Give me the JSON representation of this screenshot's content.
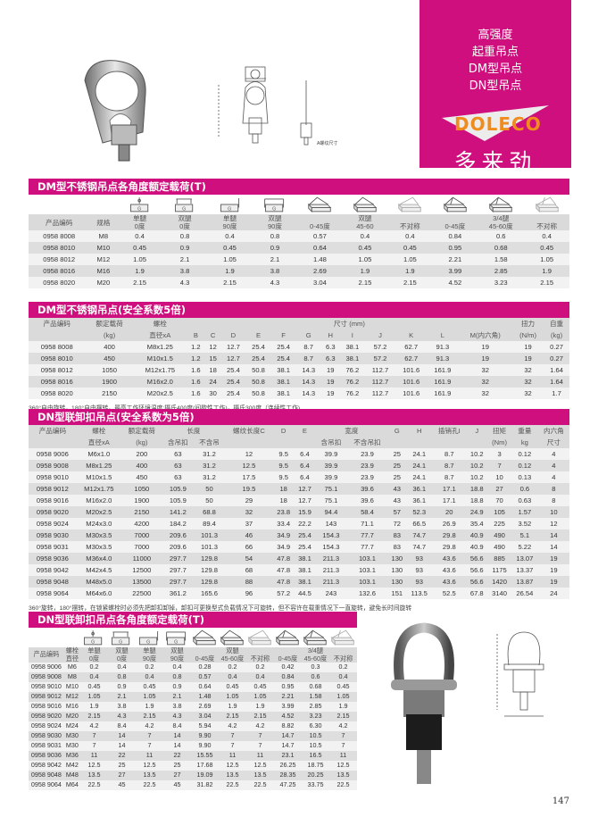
{
  "brand": {
    "lines": [
      "高强度",
      "起重吊点",
      "DM型吊点",
      "DN型吊点"
    ],
    "logo_text": "DOLECO",
    "cn_name": "多来劲",
    "color": "#cf0f7d",
    "logo_color": "#f08c1e"
  },
  "drawing_label": "A螺纹尺寸",
  "page_number": "147",
  "table1": {
    "title": "DM型不锈钢吊点各角度额定载荷(T)",
    "icons": [
      "",
      "",
      "single-leg-0-icon",
      "double-leg-0-icon",
      "single-leg-90-icon",
      "double-leg-90-icon",
      "double-leg-0-45-icon",
      "double-leg-45-60-icon",
      "double-leg-asym-icon",
      "multi-leg-0-45-icon",
      "multi-leg-45-60-icon",
      "multi-leg-asym-icon"
    ],
    "header": [
      [
        "产品编码",
        "规格",
        "单腿\n0度",
        "双腿\n0度",
        "单腿\n90度",
        "双腿\n90度",
        "\n0-45度",
        "双腿\n45-60",
        "\n不对称",
        "\n0-45度",
        "3/4腿\n45-60度",
        "\n不对称"
      ]
    ],
    "rows": [
      [
        "0958 8008",
        "M8",
        "0.4",
        "0.8",
        "0.4",
        "0.8",
        "0.57",
        "0.4",
        "0.4",
        "0.84",
        "0.6",
        "0.4"
      ],
      [
        "0958 8010",
        "M10",
        "0.45",
        "0.9",
        "0.45",
        "0.9",
        "0.64",
        "0.45",
        "0.45",
        "0.95",
        "0.68",
        "0.45"
      ],
      [
        "0958 8012",
        "M12",
        "1.05",
        "2.1",
        "1.05",
        "2.1",
        "1.48",
        "1.05",
        "1.05",
        "2.21",
        "1.58",
        "1.05"
      ],
      [
        "0958 8016",
        "M16",
        "1.9",
        "3.8",
        "1.9",
        "3.8",
        "2.69",
        "1.9",
        "1.9",
        "3.99",
        "2.85",
        "1.9"
      ],
      [
        "0958 8020",
        "M20",
        "2.15",
        "4.3",
        "2.15",
        "4.3",
        "3.04",
        "2.15",
        "2.15",
        "4.52",
        "3.23",
        "2.15"
      ]
    ]
  },
  "table2": {
    "title": "DM型不锈钢吊点(安全系数5倍)",
    "header": [
      [
        "产品编码",
        "额定载荷",
        "螺栓",
        {
          "t": "尺寸 (mm)",
          "span": 12
        },
        "扭力",
        "自重"
      ],
      [
        "",
        "(kg)",
        "直径xA",
        "B",
        "C",
        "D",
        "E",
        "F",
        "G",
        "H",
        "I",
        "J",
        "K",
        "L",
        "M(内六角)",
        "(N/m)",
        "(kg)"
      ]
    ],
    "rows": [
      [
        "0958 8008",
        "400",
        "M8x1.25",
        "1.2",
        "12",
        "12.7",
        "25.4",
        "25.4",
        "8.7",
        "6.3",
        "38.1",
        "57.2",
        "62.7",
        "91.3",
        "19",
        "19",
        "0.27"
      ],
      [
        "0958 8010",
        "450",
        "M10x1.5",
        "1.2",
        "15",
        "12.7",
        "25.4",
        "25.4",
        "8.7",
        "6.3",
        "38.1",
        "57.2",
        "62.7",
        "91.3",
        "19",
        "19",
        "0.27"
      ],
      [
        "0958 8012",
        "1050",
        "M12x1.75",
        "1.6",
        "18",
        "25.4",
        "50.8",
        "38.1",
        "14.3",
        "19",
        "76.2",
        "112.7",
        "101.6",
        "161.9",
        "32",
        "32",
        "1.64"
      ],
      [
        "0958 8016",
        "1900",
        "M16x2.0",
        "1.6",
        "24",
        "25.4",
        "50.8",
        "38.1",
        "14.3",
        "19",
        "76.2",
        "112.7",
        "101.6",
        "161.9",
        "32",
        "32",
        "1.64"
      ],
      [
        "0958 8020",
        "2150",
        "M20x2.5",
        "1.6",
        "30",
        "25.4",
        "50.8",
        "38.1",
        "14.3",
        "19",
        "76.2",
        "112.7",
        "101.6",
        "161.9",
        "32",
        "32",
        "1.7"
      ]
    ],
    "note": "360°自由旋转，180°自由摆转，最高工作环境温度:摄氏400度(间歇性工作)，摄氏300度（连续性工作)"
  },
  "table3": {
    "title": "DN型联卸扣吊点(安全系数为5倍)",
    "header": [
      [
        "产品编码",
        "螺栓",
        "额定载荷",
        {
          "t": "长度",
          "span": 2
        },
        "螺纹长度C",
        "D",
        "E",
        {
          "t": "宽度",
          "span": 2
        },
        "G",
        "H",
        "插销孔I",
        "J",
        "扭矩",
        "重量",
        "内六角"
      ],
      [
        "",
        "直径xA",
        "(kg)",
        "含吊扣",
        "不含吊",
        "",
        "",
        "",
        "含吊扣",
        "不含吊扣",
        "",
        "",
        "",
        "",
        "(Nm)",
        "kg",
        "尺寸"
      ]
    ],
    "rows": [
      [
        "0958 9006",
        "M6x1.0",
        "200",
        "63",
        "31.2",
        "12",
        "9.5",
        "6.4",
        "39.9",
        "23.9",
        "25",
        "24.1",
        "8.7",
        "10.2",
        "3",
        "0.12",
        "4"
      ],
      [
        "0958 9008",
        "M8x1.25",
        "400",
        "63",
        "31.2",
        "12.5",
        "9.5",
        "6.4",
        "39.9",
        "23.9",
        "25",
        "24.1",
        "8.7",
        "10.2",
        "7",
        "0.12",
        "4"
      ],
      [
        "0958 9010",
        "M10x1.5",
        "450",
        "63",
        "31.2",
        "17.5",
        "9.5",
        "6.4",
        "39.9",
        "23.9",
        "25",
        "24.1",
        "8.7",
        "10.2",
        "10",
        "0.13",
        "4"
      ],
      [
        "0958 9012",
        "M12x1.75",
        "1050",
        "105.9",
        "50",
        "19.5",
        "18",
        "12.7",
        "75.1",
        "39.6",
        "43",
        "36.1",
        "17.1",
        "18.8",
        "27",
        "0.6",
        "8"
      ],
      [
        "0958 9016",
        "M16x2.0",
        "1900",
        "105.9",
        "50",
        "29",
        "18",
        "12.7",
        "75.1",
        "39.6",
        "43",
        "36.1",
        "17.1",
        "18.8",
        "70",
        "0.63",
        "8"
      ],
      [
        "0958 9020",
        "M20x2.5",
        "2150",
        "141.2",
        "68.8",
        "32",
        "23.8",
        "15.9",
        "94.4",
        "58.4",
        "57",
        "52.3",
        "20",
        "24.9",
        "105",
        "1.57",
        "10"
      ],
      [
        "0958 9024",
        "M24x3.0",
        "4200",
        "184.2",
        "89.4",
        "37",
        "33.4",
        "22.2",
        "143",
        "71.1",
        "72",
        "66.5",
        "26.9",
        "35.4",
        "225",
        "3.52",
        "12"
      ],
      [
        "0958 9030",
        "M30x3.5",
        "7000",
        "209.6",
        "101.3",
        "46",
        "34.9",
        "25.4",
        "154.3",
        "77.7",
        "83",
        "74.7",
        "29.8",
        "40.9",
        "490",
        "5.1",
        "14"
      ],
      [
        "0958 9031",
        "M30x3.5",
        "7000",
        "209.6",
        "101.3",
        "66",
        "34.9",
        "25.4",
        "154.3",
        "77.7",
        "83",
        "74.7",
        "29.8",
        "40.9",
        "490",
        "5.22",
        "14"
      ],
      [
        "0958 9036",
        "M36x4.0",
        "11000",
        "297.7",
        "129.8",
        "54",
        "47.8",
        "38.1",
        "211.3",
        "103.1",
        "130",
        "93",
        "43.6",
        "56.6",
        "885",
        "13.07",
        "19"
      ],
      [
        "0958 9042",
        "M42x4.5",
        "12500",
        "297.7",
        "129.8",
        "68",
        "47.8",
        "38.1",
        "211.3",
        "103.1",
        "130",
        "93",
        "43.6",
        "56.6",
        "1175",
        "13.37",
        "19"
      ],
      [
        "0958 9048",
        "M48x5.0",
        "13500",
        "297.7",
        "129.8",
        "88",
        "47.8",
        "38.1",
        "211.3",
        "103.1",
        "130",
        "93",
        "43.6",
        "56.6",
        "1420",
        "13.87",
        "19"
      ],
      [
        "0958 9064",
        "M64x6.0",
        "22500",
        "361.2",
        "165.6",
        "96",
        "57.2",
        "44.5",
        "243",
        "132.6",
        "151",
        "113.5",
        "52.5",
        "67.8",
        "3140",
        "26.54",
        "24"
      ]
    ],
    "note": "360°旋转，180°摆转，在锁紧螺栓时必须先把卸扣卸掉，卸扣可更换型式负载情况下可旋转，但不容许在载重情况下一直旋转，避免长时间旋转"
  },
  "table4": {
    "title": "DN型联卸扣吊点各角度额定载荷(T)",
    "icons": [
      "",
      "",
      "single-leg-0-icon",
      "double-leg-0-icon",
      "single-leg-90-icon",
      "double-leg-90-icon",
      "double-leg-0-45-icon",
      "double-leg-45-60-icon",
      "double-leg-asym-icon",
      "multi-leg-0-45-icon",
      "multi-leg-45-60-icon",
      "multi-leg-asym-icon"
    ],
    "header": [
      [
        "产品编码",
        "螺栓\n直径",
        "单腿\n0度",
        "双腿\n0度",
        "单腿\n90度",
        "双腿\n90度",
        "\n0-45度",
        "双腿\n45-60度",
        "\n不对称",
        "\n0-45度",
        "3/4腿\n45-60度",
        "\n不对称"
      ]
    ],
    "rows": [
      [
        "0958 9006",
        "M6",
        "0.2",
        "0.4",
        "0.2",
        "0.4",
        "0.28",
        "0.2",
        "0.2",
        "0.42",
        "0.3",
        "0.2"
      ],
      [
        "0958 9008",
        "M8",
        "0.4",
        "0.8",
        "0.4",
        "0.8",
        "0.57",
        "0.4",
        "0.4",
        "0.84",
        "0.6",
        "0.4"
      ],
      [
        "0958 9010",
        "M10",
        "0.45",
        "0.9",
        "0.45",
        "0.9",
        "0.64",
        "0.45",
        "0.45",
        "0.95",
        "0.68",
        "0.45"
      ],
      [
        "0958 9012",
        "M12",
        "1.05",
        "2.1",
        "1.05",
        "2.1",
        "1.48",
        "1.05",
        "1.05",
        "2.21",
        "1.58",
        "1.05"
      ],
      [
        "0958 9016",
        "M16",
        "1.9",
        "3.8",
        "1.9",
        "3.8",
        "2.69",
        "1.9",
        "1.9",
        "3.99",
        "2.85",
        "1.9"
      ],
      [
        "0958 9020",
        "M20",
        "2.15",
        "4.3",
        "2.15",
        "4.3",
        "3.04",
        "2.15",
        "2.15",
        "4.52",
        "3.23",
        "2.15"
      ],
      [
        "0958 9024",
        "M24",
        "4.2",
        "8.4",
        "4.2",
        "8.4",
        "5.94",
        "4.2",
        "4.2",
        "8.82",
        "6.30",
        "4.2"
      ],
      [
        "0958 9030",
        "M30",
        "7",
        "14",
        "7",
        "14",
        "9.90",
        "7",
        "7",
        "14.7",
        "10.5",
        "7"
      ],
      [
        "0958 9031",
        "M30",
        "7",
        "14",
        "7",
        "14",
        "9.90",
        "7",
        "7",
        "14.7",
        "10.5",
        "7"
      ],
      [
        "0958 9036",
        "M36",
        "11",
        "22",
        "11",
        "22",
        "15.55",
        "11",
        "11",
        "23.1",
        "16.5",
        "11"
      ],
      [
        "0958 9042",
        "M42",
        "12.5",
        "25",
        "12.5",
        "25",
        "17.68",
        "12.5",
        "12.5",
        "26.25",
        "18.75",
        "12.5"
      ],
      [
        "0958 9048",
        "M48",
        "13.5",
        "27",
        "13.5",
        "27",
        "19.09",
        "13.5",
        "13.5",
        "28.35",
        "20.25",
        "13.5"
      ],
      [
        "0958 9064",
        "M64",
        "22.5",
        "45",
        "22.5",
        "45",
        "31.82",
        "22.5",
        "22.5",
        "47.25",
        "33.75",
        "22.5"
      ]
    ]
  }
}
